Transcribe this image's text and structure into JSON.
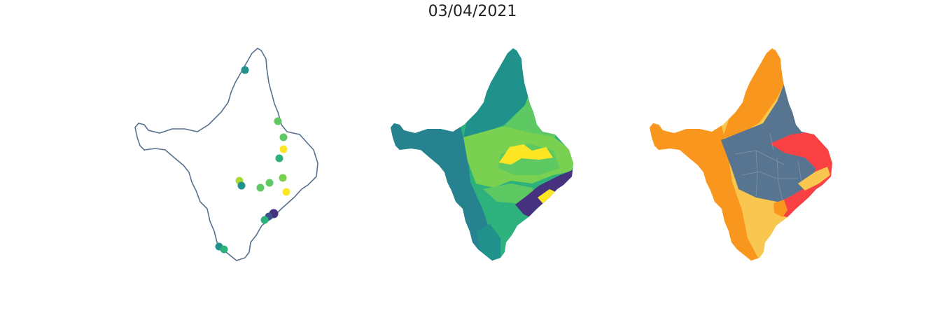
{
  "title": "03/04/2021",
  "colors": {
    "outline": "#57718f",
    "viridis_dark": "#46327e",
    "viridis_teal": "#21918c",
    "viridis_blue_teal": "#26828e",
    "viridis_green": "#2db27d",
    "viridis_light_green": "#5ec962",
    "viridis_lime": "#7ad151",
    "viridis_yellow": "#fde725",
    "class_orange": "#f8961e",
    "class_slate": "#577590",
    "class_red": "#f94144",
    "class_light_orange": "#f9c74f"
  },
  "panels": [
    {
      "name": "stations-map",
      "kind": "points"
    },
    {
      "name": "interpolated-map",
      "kind": "choropleth"
    },
    {
      "name": "classified-map",
      "kind": "categorical"
    }
  ]
}
